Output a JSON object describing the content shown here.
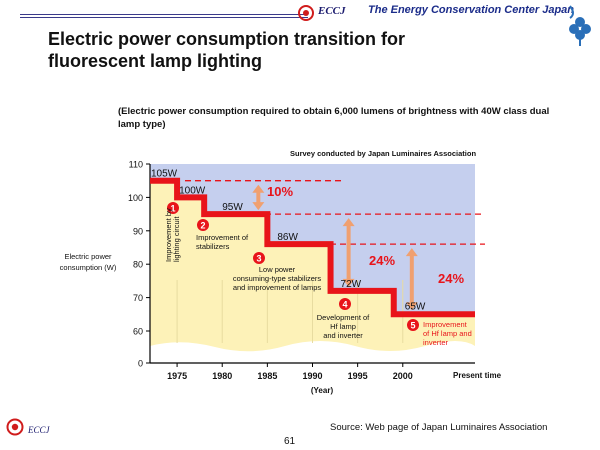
{
  "header": {
    "org_short": "ECCJ",
    "org_name": "The Energy Conservation Center Japan"
  },
  "slide": {
    "title": "Electric power consumption transition for fluorescent lamp lighting",
    "subtitle": "(Electric power consumption required to obtain 6,000 lumens of brightness with 40W class dual lamp type)",
    "survey": "Survey conducted by Japan Luminaires Association",
    "source": "Source: Web page of Japan Luminaires Association",
    "page": "61",
    "footer_logo": "ECCJ"
  },
  "chart_data": {
    "type": "line",
    "ylabel": "Electric power consumption (W)",
    "xlabel": "(Year)",
    "x_end_label": "Present time",
    "ylim": [
      0,
      110
    ],
    "xlim": [
      1972,
      2008
    ],
    "yticks": [
      "0",
      "60",
      "70",
      "80",
      "90",
      "100",
      "110"
    ],
    "xticks": [
      "1975",
      "1980",
      "1985",
      "1990",
      "1995",
      "2000"
    ],
    "steps": [
      {
        "from": 1972,
        "to": 1975,
        "value": 105,
        "label": "105W"
      },
      {
        "from": 1975,
        "to": 1978,
        "value": 100,
        "label": "100W"
      },
      {
        "from": 1978,
        "to": 1985,
        "value": 95,
        "label": "95W"
      },
      {
        "from": 1985,
        "to": 1992,
        "value": 86,
        "label": "86W"
      },
      {
        "from": 1992,
        "to": 1999,
        "value": 72,
        "label": "72W"
      },
      {
        "from": 1999,
        "to": 2008,
        "value": 65,
        "label": "65W"
      }
    ],
    "reductions": [
      {
        "label": "10%",
        "x": 1984,
        "from": 105,
        "to": 95
      },
      {
        "label": "24%",
        "x": 1994,
        "from": 95,
        "to": 72
      },
      {
        "label": "24%",
        "x": 2001,
        "from": 86,
        "to": 65
      }
    ],
    "annotations": [
      {
        "num": "1",
        "text": "Improvement by lighting circuit"
      },
      {
        "num": "2",
        "text": "Improvement of stabilizers"
      },
      {
        "num": "3",
        "text": "Low power consuming-type stabilizers and improvement of lamps"
      },
      {
        "num": "4",
        "text": "Development of Hf lamp and inverter"
      },
      {
        "num": "5",
        "text": "Improvement of Hf lamp and inverter"
      }
    ],
    "colors": {
      "step": "#e8141a",
      "bg": "#c5cfee",
      "fill": "#fdf2b8",
      "reduction": "#f0a070"
    }
  }
}
